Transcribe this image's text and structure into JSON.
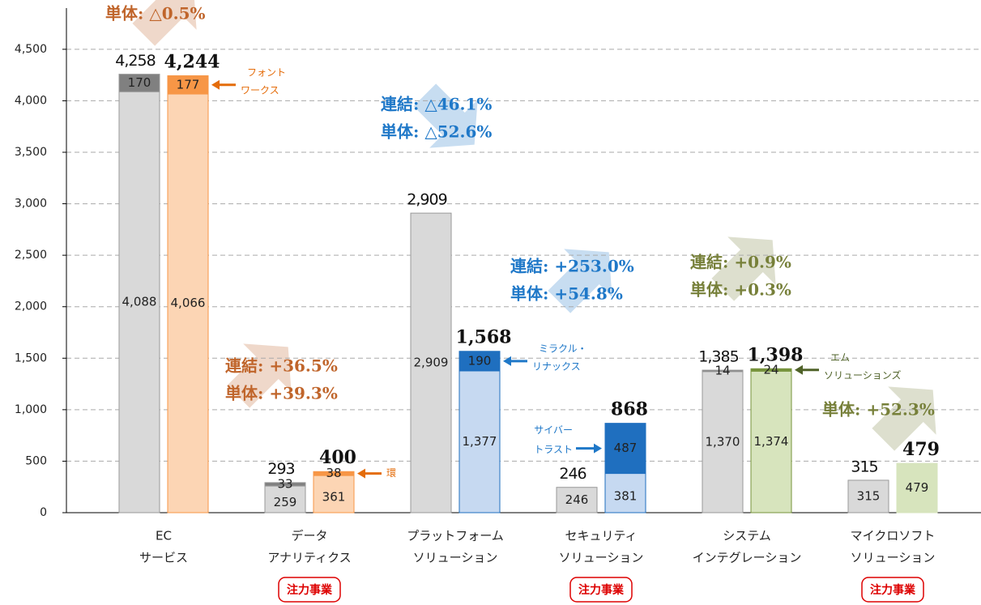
{
  "chart_data": {
    "type": "bar",
    "ylim": [
      0,
      4900
    ],
    "yticks": [
      0,
      500,
      {
        "value": 1000,
        "label": "1,000"
      },
      {
        "value": 1500,
        "label": "1,500"
      },
      {
        "value": 2000,
        "label": "2,000"
      },
      {
        "value": 2500,
        "label": "2,500"
      },
      {
        "value": 3000,
        "label": "3,000"
      },
      {
        "value": 3500,
        "label": "3,500"
      },
      {
        "value": 4000,
        "label": "4,000"
      },
      {
        "value": 4500,
        "label": "4,500"
      }
    ],
    "grid": true,
    "groups": [
      {
        "category": [
          "EC",
          "サービス"
        ],
        "bars": [
          {
            "segments": [
              4088,
              170
            ],
            "segment_labels": [
              "4,088",
              "170"
            ],
            "colors": [
              "#d9d9d9",
              "#808080"
            ],
            "total": 4258,
            "total_label": "4,258"
          },
          {
            "segments": [
              4066,
              177
            ],
            "segment_labels": [
              "4,066",
              "177"
            ],
            "colors": [
              "#fcd5b4",
              "#f79646"
            ],
            "total": 4244,
            "total_label": "4,244"
          }
        ],
        "note": [
          "フォント",
          "ワークス"
        ],
        "note_color": "#e46c0a",
        "growth": [
          "単体: △0.5%"
        ],
        "growth_color": "#c0652b"
      },
      {
        "category": [
          "データ",
          "アナリティクス"
        ],
        "bars": [
          {
            "segments": [
              259,
              33
            ],
            "colors": [
              "#d9d9d9",
              "#808080"
            ],
            "total": 293
          },
          {
            "segments": [
              361,
              38
            ],
            "colors": [
              "#fcd5b4",
              "#f79646"
            ],
            "total": 400
          }
        ],
        "note": [
          "環"
        ],
        "note_color": "#e46c0a",
        "growth": [
          "連結: +36.5%",
          "単体: +39.3%"
        ],
        "growth_color": "#c0652b",
        "focus": "注力事業"
      },
      {
        "category": [
          "プラットフォーム",
          "ソリューション"
        ],
        "bars": [
          {
            "segments": [
              2909
            ],
            "segment_labels": [
              "2,909"
            ],
            "colors": [
              "#d9d9d9"
            ],
            "total": 2909,
            "total_label": "2,909"
          },
          {
            "segments": [
              1377,
              190
            ],
            "segment_labels": [
              "1,377",
              "190"
            ],
            "colors": [
              "#c6d9f1",
              "#1f6fbf"
            ],
            "total": 1568,
            "total_label": "1,568"
          }
        ],
        "note": [
          "ミラクル・",
          "リナックス"
        ],
        "note_color": "#1f78c8",
        "growth": [
          "連結: △46.1%",
          "単体: △52.6%"
        ],
        "growth_color": "#1f78c8"
      },
      {
        "category": [
          "セキュリティ",
          "ソリューション"
        ],
        "bars": [
          {
            "segments": [
              246
            ],
            "colors": [
              "#d9d9d9"
            ],
            "total": 246
          },
          {
            "segments": [
              381,
              487
            ],
            "colors": [
              "#c6d9f1",
              "#1f6fbf"
            ],
            "total": 868
          }
        ],
        "note": [
          "サイバー",
          "トラスト"
        ],
        "note_color": "#1f78c8",
        "growth": [
          "連結: +253.0%",
          "単体: +54.8%"
        ],
        "growth_color": "#1f78c8",
        "focus": "注力事業"
      },
      {
        "category": [
          "システム",
          "インテグレーション"
        ],
        "bars": [
          {
            "segments": [
              1370,
              14
            ],
            "segment_labels": [
              "1,370",
              "14"
            ],
            "colors": [
              "#d9d9d9",
              "#808080"
            ],
            "total": 1385,
            "total_label": "1,385"
          },
          {
            "segments": [
              1374,
              24
            ],
            "segment_labels": [
              "1,374",
              "24"
            ],
            "colors": [
              "#d7e4bd",
              "#77933c"
            ],
            "total": 1398,
            "total_label": "1,398"
          }
        ],
        "note": [
          "エム",
          "ソリューションズ"
        ],
        "note_color": "#4f6228",
        "growth": [
          "連結: +0.9%",
          "単体: +0.3%"
        ],
        "growth_color": "#77803a"
      },
      {
        "category": [
          "マイクロソフト",
          "ソリューション"
        ],
        "bars": [
          {
            "segments": [
              315
            ],
            "colors": [
              "#d9d9d9"
            ],
            "total": 315
          },
          {
            "segments": [
              479
            ],
            "colors": [
              "#d7e4bd"
            ],
            "total": 479
          }
        ],
        "growth": [
          "単体: +52.3%"
        ],
        "growth_color": "#77803a",
        "focus": "注力事業"
      }
    ]
  }
}
